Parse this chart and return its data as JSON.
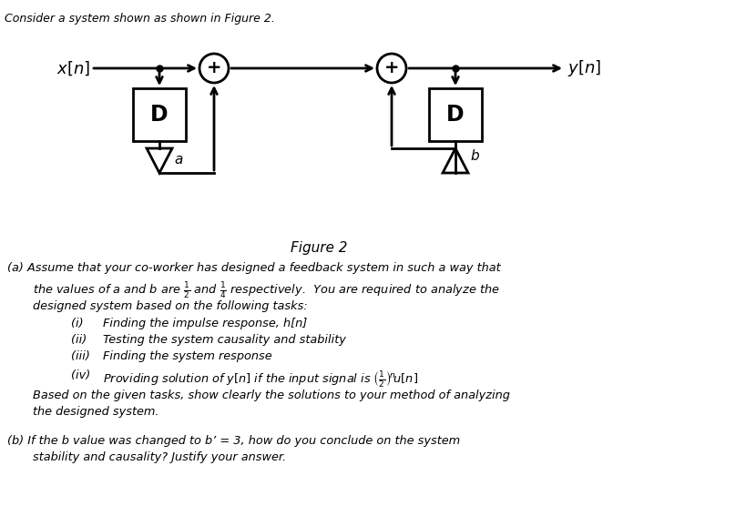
{
  "title_text": "Consider a system shown as shown in Figure 2.",
  "figure_label": "Figure 2",
  "bg_color": "#ffffff",
  "part_a": "(a) Assume that your co-worker has designed a feedback system in such a way that",
  "part_a3": "designed system based on the following tasks:",
  "item_i": "Finding the impulse response, h[n]",
  "item_ii": "Testing the system causality and stability",
  "item_iii": "Finding the system response",
  "part_a_close": "Based on the given tasks, show clearly the solutions to your method of analyzing",
  "part_a_close2": "the designed system.",
  "part_b": "(b) If the b value was changed to b’ = 3, how do you conclude on the system",
  "part_b2": "stability and causality? Justify your answer."
}
